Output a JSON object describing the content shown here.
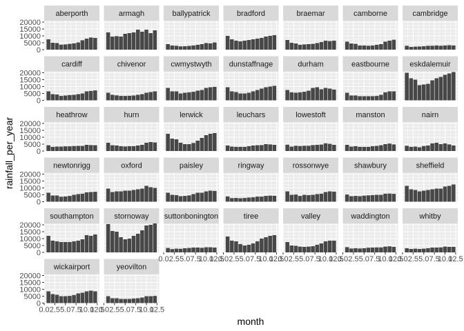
{
  "chart_data": {
    "type": "bar",
    "facet": "station",
    "xlabel": "month",
    "ylabel": "rainfall_per_year",
    "x": [
      1,
      2,
      3,
      4,
      5,
      6,
      7,
      8,
      9,
      10,
      11,
      12
    ],
    "xlim": [
      0,
      13
    ],
    "x_tick_labels": [
      "0.0",
      "2.5",
      "5.0",
      "7.5",
      "10.0",
      "12.5"
    ],
    "ylim": [
      0,
      21000
    ],
    "y_ticks": [
      0,
      5000,
      10000,
      15000,
      20000
    ],
    "y_tick_labels": [
      "0",
      "5000",
      "10000",
      "15000",
      "20000"
    ],
    "grid": true,
    "colors": {
      "bar": "#474747",
      "panel": "#ebebeb",
      "strip": "#d9d9d9",
      "grid": "#ffffff"
    },
    "panels": [
      {
        "station": "aberporth",
        "values": [
          7500,
          5000,
          4800,
          3600,
          3800,
          4200,
          4600,
          5200,
          6800,
          8000,
          8800,
          8500
        ]
      },
      {
        "station": "armagh",
        "values": [
          12500,
          9500,
          9800,
          9500,
          11500,
          12000,
          12500,
          14500,
          13000,
          14500,
          12000,
          14000
        ]
      },
      {
        "station": "ballypatrick",
        "values": [
          4000,
          3000,
          2800,
          2400,
          2500,
          2700,
          3000,
          3500,
          4000,
          4800,
          4600,
          5200
        ]
      },
      {
        "station": "bradford",
        "values": [
          10000,
          7500,
          6500,
          6000,
          6500,
          7000,
          7500,
          8000,
          8500,
          9500,
          10000,
          10500
        ]
      },
      {
        "station": "braemar",
        "values": [
          7000,
          5000,
          4500,
          3500,
          3800,
          4000,
          4200,
          4800,
          5500,
          6500,
          6200,
          6500
        ]
      },
      {
        "station": "camborne",
        "values": [
          5800,
          4500,
          4200,
          3000,
          3000,
          2800,
          3000,
          3500,
          4000,
          5800,
          6500,
          7200
        ]
      },
      {
        "station": "cambridge",
        "values": [
          2800,
          2000,
          2200,
          2300,
          2500,
          2800,
          2800,
          3000,
          2800,
          3000,
          3200,
          3000
        ]
      },
      {
        "station": "cardiff",
        "values": [
          6500,
          4500,
          4200,
          3200,
          3500,
          3800,
          4000,
          4500,
          5000,
          6500,
          6800,
          7200
        ]
      },
      {
        "station": "chivenor",
        "values": [
          5500,
          4000,
          3600,
          3200,
          3200,
          3300,
          3500,
          4000,
          4500,
          5500,
          6000,
          6500
        ]
      },
      {
        "station": "cwmystwyth",
        "values": [
          9000,
          6500,
          6500,
          5000,
          5500,
          5800,
          6200,
          7000,
          7500,
          9000,
          9500,
          9800
        ]
      },
      {
        "station": "dunstaffnage",
        "values": [
          9500,
          6500,
          6000,
          5000,
          5000,
          5500,
          6500,
          7500,
          8500,
          9500,
          10000,
          10500
        ]
      },
      {
        "station": "durham",
        "values": [
          7500,
          5800,
          5500,
          5800,
          6200,
          7000,
          9000,
          9500,
          8000,
          9000,
          8500,
          7800
        ]
      },
      {
        "station": "eastbourne",
        "values": [
          5500,
          3500,
          3500,
          3000,
          3000,
          3000,
          3000,
          3200,
          4000,
          5800,
          6500,
          6500
        ]
      },
      {
        "station": "eskdalemuir",
        "values": [
          20000,
          16000,
          15000,
          11000,
          11500,
          12000,
          14500,
          16000,
          17000,
          18500,
          19500,
          20500
        ]
      },
      {
        "station": "heathrow",
        "values": [
          4200,
          3000,
          3200,
          3200,
          3400,
          3400,
          3600,
          3700,
          3700,
          4500,
          4300,
          4200
        ]
      },
      {
        "station": "hurn",
        "values": [
          6000,
          4200,
          4000,
          3500,
          3300,
          3500,
          3500,
          4000,
          4500,
          6000,
          6500,
          6200
        ]
      },
      {
        "station": "lerwick",
        "values": [
          12500,
          9000,
          8500,
          6000,
          5000,
          5000,
          5800,
          7500,
          9500,
          11500,
          12500,
          13000
        ]
      },
      {
        "station": "leuchars",
        "values": [
          4000,
          3200,
          3000,
          3000,
          3000,
          3500,
          4000,
          4200,
          4300,
          5000,
          4800,
          4500
        ]
      },
      {
        "station": "lowestoft",
        "values": [
          4600,
          3200,
          3800,
          3600,
          3800,
          3800,
          4300,
          4500,
          4700,
          5600,
          5200,
          4500
        ]
      },
      {
        "station": "manston",
        "values": [
          4500,
          3200,
          3500,
          3000,
          3000,
          3000,
          3500,
          3700,
          4200,
          5000,
          5400,
          4800
        ]
      },
      {
        "station": "nairn",
        "values": [
          3800,
          3000,
          3200,
          2700,
          3600,
          4000,
          5500,
          6000,
          5000,
          5500,
          4800,
          4000
        ]
      },
      {
        "station": "newtonrigg",
        "values": [
          6500,
          4500,
          4500,
          3600,
          3800,
          4200,
          5000,
          5500,
          5800,
          6800,
          7000,
          7200
        ]
      },
      {
        "station": "oxford",
        "values": [
          9500,
          7000,
          7500,
          7500,
          8000,
          8000,
          8500,
          9000,
          9500,
          11500,
          10500,
          10000
        ]
      },
      {
        "station": "paisley",
        "values": [
          6500,
          5000,
          4800,
          4000,
          4200,
          4600,
          5500,
          6500,
          6500,
          7500,
          8000,
          7800
        ]
      },
      {
        "station": "ringway",
        "values": [
          3800,
          2600,
          2700,
          2500,
          2700,
          3000,
          3200,
          3700,
          3700,
          4200,
          4400,
          4300
        ]
      },
      {
        "station": "rossonwye",
        "values": [
          7500,
          5000,
          5200,
          4200,
          5000,
          4800,
          5000,
          5500,
          5800,
          7000,
          7500,
          7300
        ]
      },
      {
        "station": "shawbury",
        "values": [
          5200,
          4000,
          4200,
          4000,
          4400,
          4600,
          4800,
          5000,
          5000,
          5800,
          5900,
          5700
        ]
      },
      {
        "station": "sheffield",
        "values": [
          11500,
          9000,
          8500,
          7500,
          8000,
          8500,
          9000,
          9500,
          9500,
          11000,
          11500,
          12500
        ]
      },
      {
        "station": "southampton",
        "values": [
          12000,
          8500,
          8000,
          7500,
          7500,
          7500,
          8000,
          8500,
          9500,
          12500,
          12000,
          13000
        ]
      },
      {
        "station": "stornoway",
        "values": [
          20500,
          15500,
          15000,
          11000,
          9500,
          10000,
          12000,
          13500,
          16000,
          19500,
          20000,
          21000
        ]
      },
      {
        "station": "suttonbonington",
        "values": [
          3200,
          2400,
          2700,
          2600,
          3000,
          3200,
          3500,
          3500,
          3300,
          3700,
          3700,
          3500
        ]
      },
      {
        "station": "tiree",
        "values": [
          11500,
          8500,
          8000,
          6000,
          5000,
          5500,
          6500,
          8000,
          10000,
          11000,
          12000,
          12500
        ]
      },
      {
        "station": "valley",
        "values": [
          7500,
          5000,
          4800,
          4200,
          4000,
          4200,
          4500,
          5500,
          6500,
          8000,
          8500,
          8500
        ]
      },
      {
        "station": "waddington",
        "values": [
          3800,
          2800,
          3000,
          2800,
          3000,
          3400,
          3500,
          3600,
          3600,
          4200,
          4400,
          4000
        ]
      },
      {
        "station": "whitby",
        "values": [
          3000,
          2500,
          2700,
          2500,
          2700,
          3000,
          3500,
          3500,
          3600,
          4200,
          4000,
          4000
        ]
      },
      {
        "station": "wickairport",
        "values": [
          8500,
          6500,
          6000,
          5000,
          5000,
          5200,
          5800,
          7000,
          7500,
          8500,
          9000,
          8500
        ]
      },
      {
        "station": "yeovilton",
        "values": [
          5000,
          3500,
          3500,
          3000,
          3000,
          3000,
          3300,
          3500,
          4000,
          5000,
          5000,
          5200
        ]
      }
    ]
  }
}
